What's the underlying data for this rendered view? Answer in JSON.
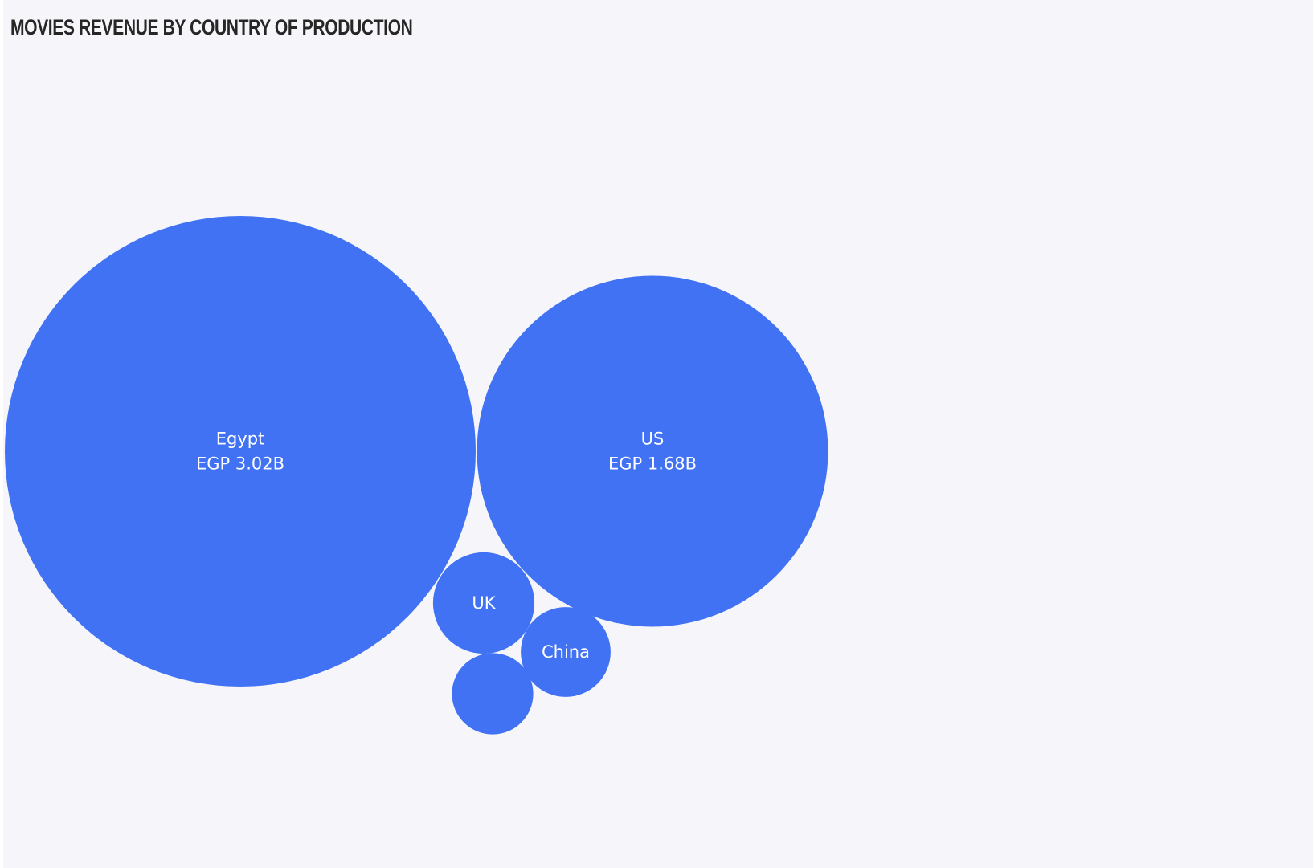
{
  "chart_data": {
    "type": "bubble",
    "title": "MOVIES REVENUE BY COUNTRY OF PRODUCTION",
    "bubble_color": "#4172f3",
    "label_color": "#ffffff",
    "items": [
      {
        "country": "Egypt",
        "value_label": "EGP 3.02B",
        "value": 3.02
      },
      {
        "country": "US",
        "value_label": "EGP 1.68B",
        "value": 1.68
      },
      {
        "country": "UK",
        "value_label": "",
        "value": 0.14
      },
      {
        "country": "China",
        "value_label": "",
        "value": 0.11
      },
      {
        "country": "",
        "value_label": "",
        "value": 0.09
      }
    ]
  }
}
